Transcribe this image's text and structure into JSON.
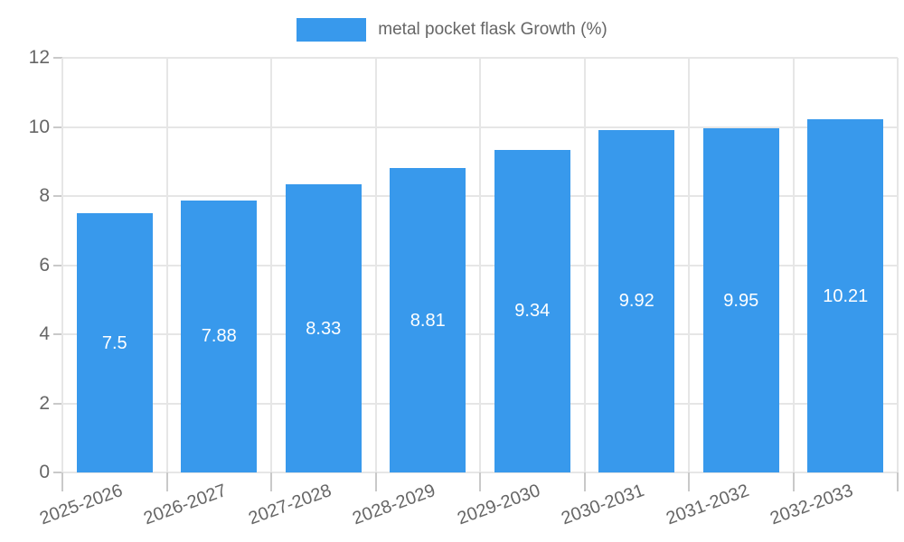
{
  "legend": {
    "label": "metal pocket flask Growth (%)"
  },
  "colors": {
    "bar": "#3899ec",
    "grid": "#e6e6e6",
    "tick": "#c9c9c9",
    "axis_line": "#a8a8a8",
    "axis_text": "#666666",
    "value_text": "#ffffff",
    "background": "#ffffff"
  },
  "chart_data": {
    "type": "bar",
    "title": "",
    "series_name": "metal pocket flask Growth (%)",
    "categories": [
      "2025-2026",
      "2026-2027",
      "2027-2028",
      "2028-2029",
      "2029-2030",
      "2030-2031",
      "2031-2032",
      "2032-2033"
    ],
    "values": [
      7.5,
      7.88,
      8.33,
      8.81,
      9.34,
      9.92,
      9.95,
      10.21
    ],
    "value_labels": [
      "7.5",
      "7.88",
      "8.33",
      "8.81",
      "9.34",
      "9.92",
      "9.95",
      "10.21"
    ],
    "xlabel": "",
    "ylabel": "",
    "ylim": [
      0,
      12
    ],
    "ytick_step": 2,
    "ytick_labels": [
      "0",
      "2",
      "4",
      "6",
      "8",
      "10",
      "12"
    ],
    "grid": true,
    "legend_position": "top"
  }
}
